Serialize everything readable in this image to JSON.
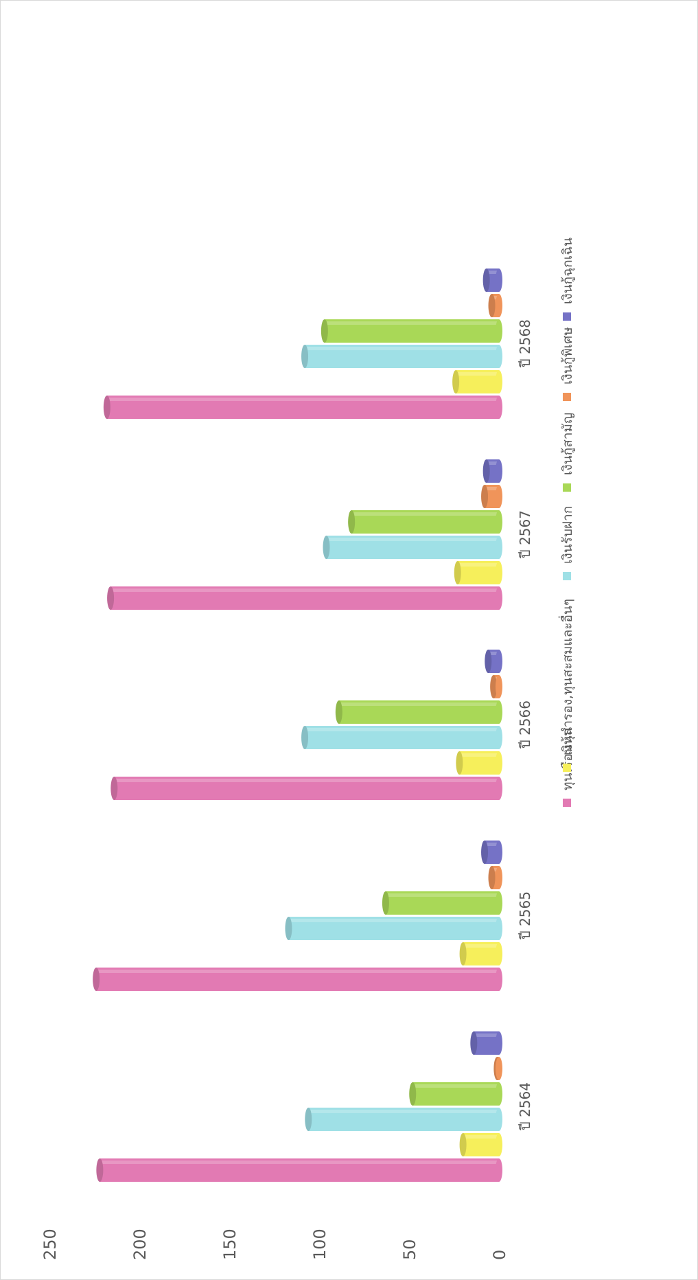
{
  "chart_data": {
    "type": "bar",
    "orientation": "horizontal-rotated",
    "title": "",
    "xlabel": "",
    "ylabel": "",
    "ylim": [
      0,
      250
    ],
    "yticks": [
      "0",
      "50",
      "100",
      "150",
      "200",
      "250"
    ],
    "categories": [
      "ปี 2564",
      "ปี 2565",
      "ปี 2566",
      "ปี 2567",
      "ปี 2568"
    ],
    "series": [
      {
        "name": "ทุนเรือนหุ้น",
        "color": "#e27ab3",
        "values": [
          222,
          224,
          214,
          216,
          218
        ]
      },
      {
        "name": "เงินสำรอง,ทุนสะสมและอื่นๆ",
        "color": "#f6ef5b",
        "values": [
          20,
          20,
          22,
          23,
          24
        ]
      },
      {
        "name": "เงินรับฝาก",
        "color": "#9fe0e6",
        "values": [
          106,
          117,
          108,
          96,
          108
        ]
      },
      {
        "name": "เงินกู้สามัญ",
        "color": "#a9d857",
        "values": [
          48,
          63,
          89,
          82,
          97
        ]
      },
      {
        "name": "เงินกู้พิเศษ",
        "color": "#f0945a",
        "values": [
          1,
          4,
          3,
          8,
          4
        ]
      },
      {
        "name": "เงินกู้ฉุกเฉิน",
        "color": "#7572c6",
        "values": [
          14,
          8,
          6,
          7,
          7
        ]
      }
    ],
    "grid": false,
    "legend": "bottom"
  }
}
